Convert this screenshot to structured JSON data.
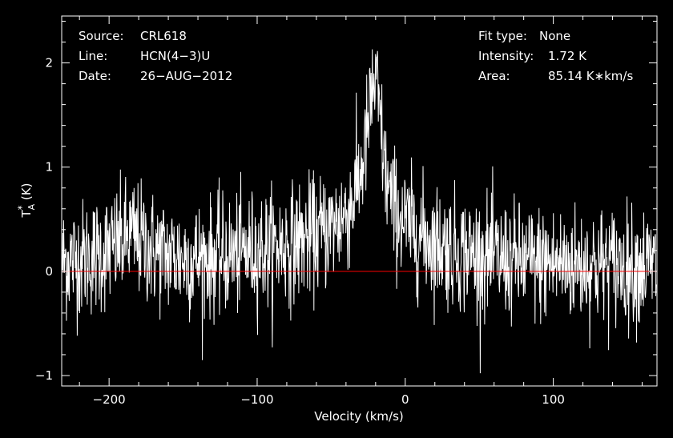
{
  "info": {
    "source_label": "Source:",
    "source_value": "CRL618",
    "line_label": "Line:",
    "line_value": "HCN(4−3)U",
    "date_label": "Date:",
    "date_value": "26−AUG−2012",
    "fit_label": "Fit type:",
    "fit_value": "None",
    "intensity_label": "Intensity:",
    "intensity_value": "1.72 K",
    "area_label": "Area:",
    "area_value": "85.14 K∗km/s"
  },
  "colors": {
    "background": "#000000",
    "data": "#ffffff",
    "baseline": "#ff0000",
    "axes": "#ffffff"
  },
  "chart_data": {
    "type": "line",
    "title": "",
    "xlabel": "Velocity (km/s)",
    "ylabel": "T*A (K)",
    "xlim": [
      -232,
      170
    ],
    "ylim": [
      -1.1,
      2.45
    ],
    "xticks": [
      -200,
      -100,
      0,
      100
    ],
    "xtick_labels": [
      "−200",
      "−100",
      "0",
      "100"
    ],
    "yticks": [
      -1,
      0,
      1,
      2
    ],
    "ytick_labels": [
      "−1",
      "0",
      "1",
      "2"
    ],
    "baseline_y": 0,
    "series": [
      {
        "values_note_skip": true,
        "x": [
          -230,
          -220,
          -210,
          -200,
          -190,
          -185,
          -180,
          -170,
          -160,
          -150,
          -140,
          -130,
          -120,
          -110,
          -100,
          -90,
          -80,
          -70,
          -60,
          -50,
          -45,
          -40,
          -35,
          -30,
          -27,
          -24,
          -22,
          -20,
          -18,
          -16,
          -14,
          -12,
          -10,
          -5,
          0,
          10,
          20,
          30,
          40,
          50,
          60,
          70,
          80,
          90,
          100,
          110,
          120,
          130,
          140,
          150,
          160,
          168
        ],
        "y": [
          0.1,
          0.12,
          0.15,
          0.2,
          0.3,
          0.35,
          0.3,
          0.2,
          0.15,
          0.12,
          0.12,
          0.13,
          0.15,
          0.18,
          0.2,
          0.22,
          0.25,
          0.3,
          0.35,
          0.42,
          0.48,
          0.55,
          0.7,
          0.95,
          1.2,
          1.5,
          1.75,
          1.8,
          1.6,
          1.3,
          1.0,
          0.85,
          0.7,
          0.55,
          0.45,
          0.35,
          0.28,
          0.22,
          0.18,
          0.15,
          0.12,
          0.1,
          0.08,
          0.08,
          0.07,
          0.07,
          0.06,
          0.06,
          0.06,
          0.05,
          0.05,
          0.05
        ]
      }
    ]
  }
}
